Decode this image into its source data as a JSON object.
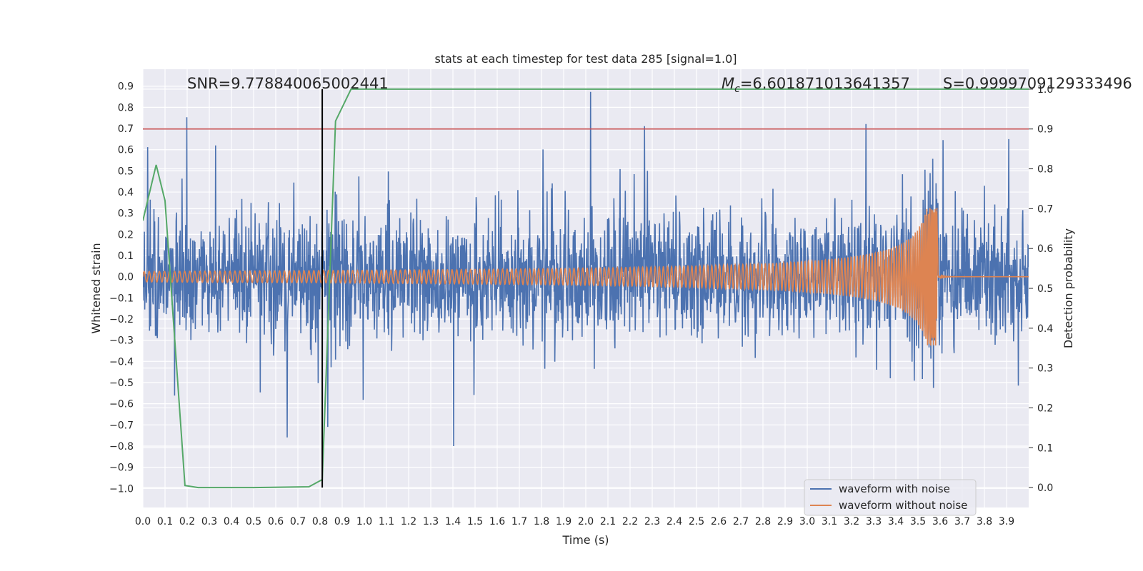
{
  "chart_data": {
    "type": "line",
    "title": "stats at each timestep for test data 285 [signal=1.0]",
    "xlabel": "Time (s)",
    "ylabel": "Whitened strain",
    "y2label": "Detection probability",
    "xlim": [
      0.0,
      4.0
    ],
    "ylim": [
      -1.09,
      0.98
    ],
    "y2lim": [
      -0.05,
      1.05
    ],
    "x_ticks": [
      "0.0",
      "0.1",
      "0.2",
      "0.3",
      "0.4",
      "0.5",
      "0.6",
      "0.7",
      "0.8",
      "0.9",
      "1.0",
      "1.1",
      "1.2",
      "1.3",
      "1.4",
      "1.5",
      "1.6",
      "1.7",
      "1.8",
      "1.9",
      "2.0",
      "2.1",
      "2.2",
      "2.3",
      "2.4",
      "2.5",
      "2.6",
      "2.7",
      "2.8",
      "2.9",
      "3.0",
      "3.1",
      "3.2",
      "3.3",
      "3.4",
      "3.5",
      "3.6",
      "3.7",
      "3.8",
      "3.9"
    ],
    "y_ticks": [
      "0.9",
      "0.8",
      "0.7",
      "0.6",
      "0.5",
      "0.4",
      "0.3",
      "0.2",
      "0.1",
      "0.0",
      "-0.1",
      "-0.2",
      "-0.3",
      "-0.4",
      "-0.5",
      "-0.6",
      "-0.7",
      "-0.8",
      "-0.9",
      "-1.0"
    ],
    "y2_ticks": [
      "1.0",
      "0.9",
      "0.8",
      "0.7",
      "0.6",
      "0.5",
      "0.4",
      "0.3",
      "0.2",
      "0.1",
      "0.0"
    ],
    "annotations": {
      "snr": "SNR=9.778840065002441",
      "mc_symbol": "M",
      "mc_sub": "c",
      "mc_value": "=6.601871013641357",
      "s": "S=0.9999709129333496"
    },
    "threshold": 0.9,
    "marker_time": 0.81,
    "legend": {
      "position": "lower-right",
      "entries": [
        {
          "label": "waveform with noise",
          "color": "#4c72b0"
        },
        {
          "label": "waveform without noise",
          "color": "#dd8452"
        }
      ]
    },
    "series": [
      {
        "name": "waveform with noise",
        "color": "#4c72b0",
        "noise_amplitude": 0.27,
        "peaks_max": 0.89,
        "peaks_min": -1.0
      },
      {
        "name": "waveform without noise",
        "color": "#dd8452",
        "chirp_amplitude_start": 0.025,
        "chirp_amplitude_peak": 0.33,
        "merger_time": 3.59
      },
      {
        "name": "detection probability",
        "color": "#55a868",
        "axis": "right",
        "x": [
          0.0,
          0.06,
          0.1,
          0.19,
          0.25,
          0.5,
          0.75,
          0.81,
          0.87,
          0.94,
          4.0
        ],
        "y": [
          0.67,
          0.81,
          0.72,
          0.005,
          0.0,
          0.0,
          0.002,
          0.02,
          0.92,
          1.0,
          1.0
        ]
      }
    ],
    "colors": {
      "plot_bg": "#eaeaf2",
      "grid": "#ffffff",
      "threshold": "#c44e52",
      "marker": "#000000"
    }
  }
}
